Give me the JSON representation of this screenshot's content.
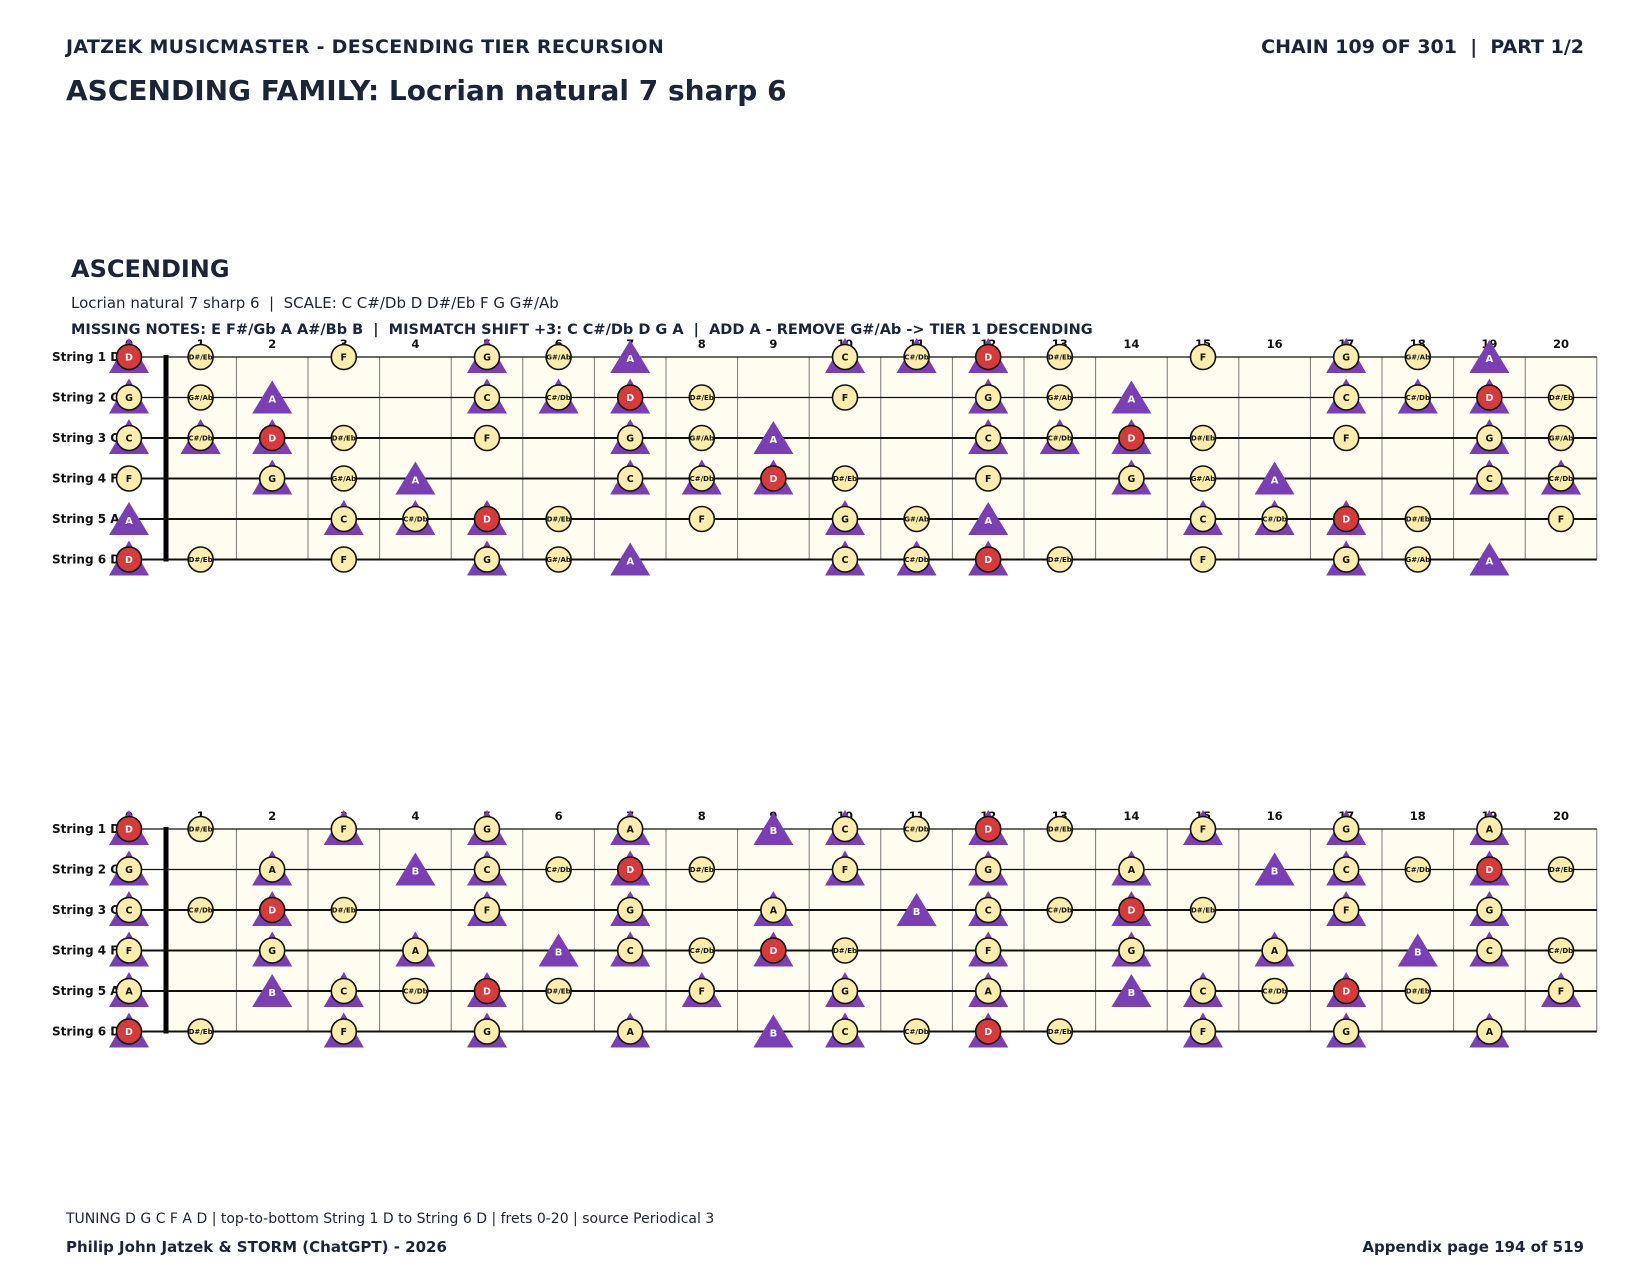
{
  "header": {
    "left": "JATZEK MUSICMASTER - DESCENDING TIER RECURSION",
    "right": "CHAIN 109 OF 301  |  PART 1/2"
  },
  "family_title": "ASCENDING FAMILY: Locrian natural 7 sharp 6",
  "section": {
    "title": "ASCENDING",
    "scale_line": "Locrian natural 7 sharp 6  |  SCALE: C C#/Db D D#/Eb F G G#/Ab",
    "missing_line": "MISSING NOTES: E F#/Gb A A#/Bb B  |  MISMATCH SHIFT +3: C C#/Db D G A  |  ADD A - REMOVE G#/Ab -> TIER 1 DESCENDING"
  },
  "footer": {
    "note": "TUNING D G C F A D | top-to-bottom String 1 D to String 6 D | frets 0-20 | source Periodical 3",
    "author": "Philip John Jatzek & STORM (ChatGPT) - 2026",
    "page": "Appendix page 194 of 519"
  },
  "colors": {
    "board_bg": "#fffdf0",
    "note_fill": "#fbeeac",
    "root_fill": "#d63a3a",
    "triangle": "#7a3fb5",
    "text": "#1b2536"
  },
  "chart_data": [
    {
      "type": "fretboard",
      "frets": [
        0,
        20
      ],
      "fret_labels": [
        "0",
        "1",
        "2",
        "3",
        "4",
        "5",
        "6",
        "7",
        "8",
        "9",
        "10",
        "11",
        "12",
        "13",
        "14",
        "15",
        "16",
        "17",
        "18",
        "19",
        "20"
      ],
      "strings": [
        {
          "label": "String 1 D",
          "open": "D"
        },
        {
          "label": "String 2 G",
          "open": "G"
        },
        {
          "label": "String 3 C",
          "open": "C"
        },
        {
          "label": "String 4 F",
          "open": "F"
        },
        {
          "label": "String 5 A",
          "open": "A"
        },
        {
          "label": "String 6 D",
          "open": "D"
        }
      ],
      "circle_notes": [
        "C",
        "C#/Db",
        "D",
        "D#/Eb",
        "F",
        "G",
        "G#/Ab"
      ],
      "triangle_notes": [
        "C",
        "C#/Db",
        "D",
        "G",
        "A"
      ],
      "root": "D"
    },
    {
      "type": "fretboard",
      "frets": [
        0,
        20
      ],
      "fret_labels": [
        "0",
        "1",
        "2",
        "3",
        "4",
        "5",
        "6",
        "7",
        "8",
        "9",
        "10",
        "11",
        "12",
        "13",
        "14",
        "15",
        "16",
        "17",
        "18",
        "19",
        "20"
      ],
      "strings": [
        {
          "label": "String 1 D",
          "open": "D"
        },
        {
          "label": "String 2 G",
          "open": "G"
        },
        {
          "label": "String 3 C",
          "open": "C"
        },
        {
          "label": "String 4 F",
          "open": "F"
        },
        {
          "label": "String 5 A",
          "open": "A"
        },
        {
          "label": "String 6 D",
          "open": "D"
        }
      ],
      "circle_notes": [
        "C",
        "C#/Db",
        "D",
        "D#/Eb",
        "F",
        "G",
        "A"
      ],
      "triangle_notes": [
        "C",
        "D",
        "F",
        "G",
        "A",
        "B"
      ],
      "root": "D"
    }
  ]
}
